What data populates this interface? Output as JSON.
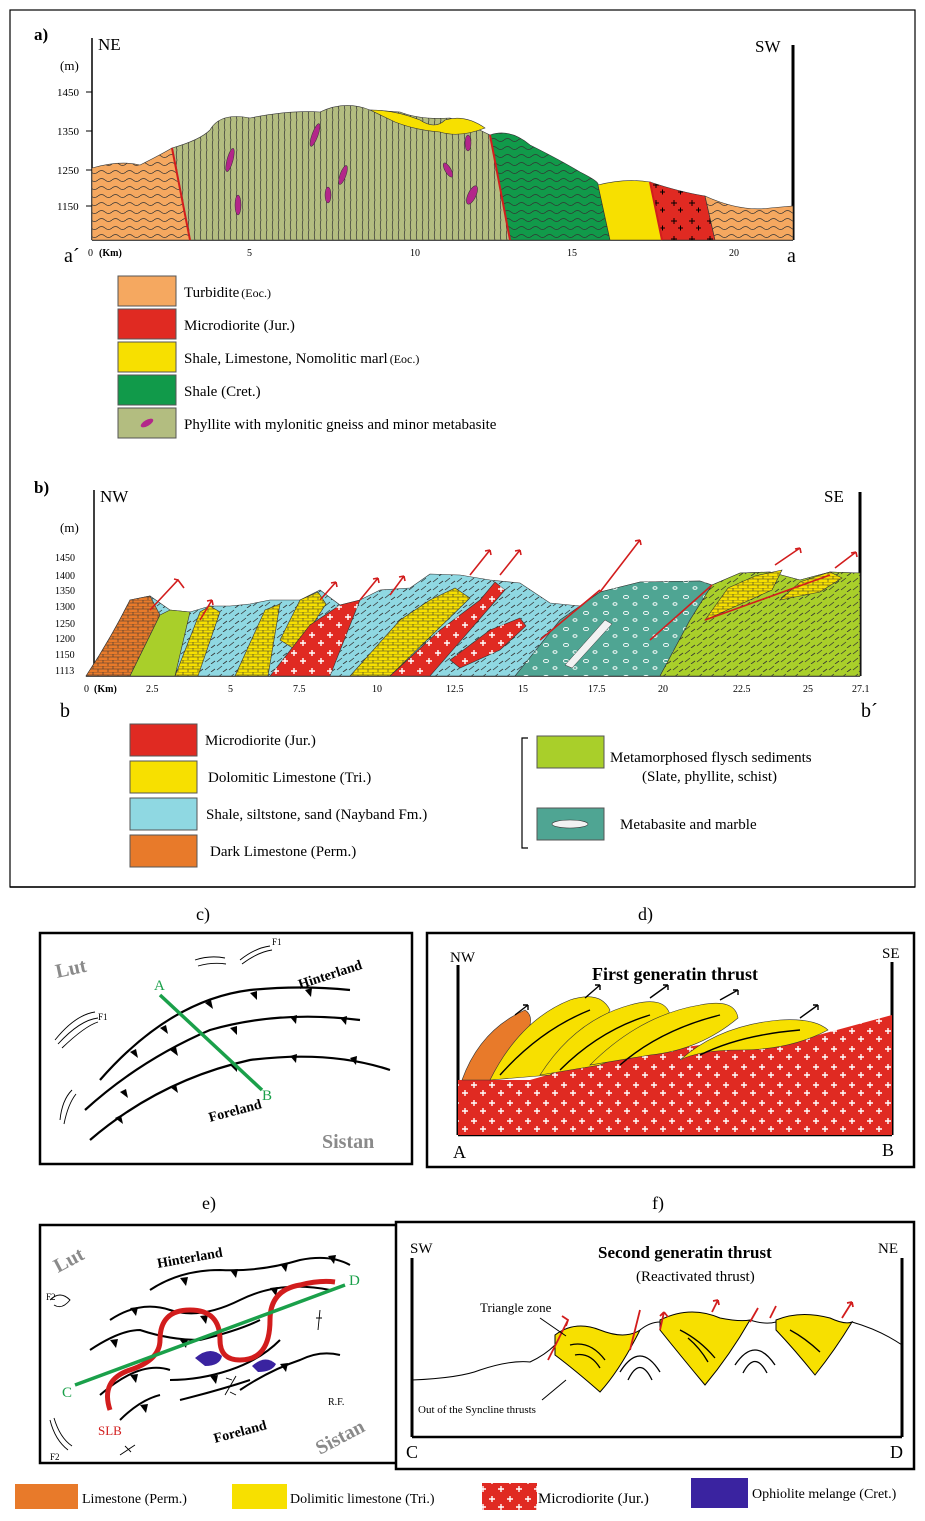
{
  "panel_a": {
    "tag": "a)",
    "dir_left": "NE",
    "dir_right": "SW",
    "unit": "(m)",
    "elev_ticks": [
      "1450",
      "1350",
      "1250",
      "1150"
    ],
    "km_unit": "(Km)",
    "km_ticks": [
      "0",
      "5",
      "10",
      "15",
      "20"
    ],
    "end_left": "a´",
    "end_right": "a",
    "legend": [
      {
        "label": "Turbidite",
        "suffix": "(Eoc.)",
        "color": "#f5a860"
      },
      {
        "label": "Microdiorite (Jur.)",
        "suffix": "",
        "color": "#e02a22"
      },
      {
        "label": "Shale, Limestone, Nomolitic marl",
        "suffix": "(Eoc.)",
        "color": "#f7e000"
      },
      {
        "label": "Shale (Cret.)",
        "suffix": "",
        "color": "#119a4a"
      },
      {
        "label": "Phyllite with mylonitic gneiss and minor metabasite",
        "suffix": "",
        "color": "#b3bd80"
      }
    ]
  },
  "panel_b": {
    "tag": "b)",
    "dir_left": "NW",
    "dir_right": "SE",
    "unit": "(m)",
    "elev_ticks": [
      "1450",
      "1400",
      "1350",
      "1300",
      "1250",
      "1200",
      "1150",
      "1113"
    ],
    "km_unit": "(Km)",
    "km_ticks": [
      "0",
      "2.5",
      "5",
      "7.5",
      "10",
      "12.5",
      "15",
      "17.5",
      "20",
      "22.5",
      "25",
      "27.1"
    ],
    "end_left": "b",
    "end_right": "b´",
    "legend_left": [
      {
        "label": "Microdiorite (Jur.)",
        "color": "#e02a22"
      },
      {
        "label": "Dolomitic Limestone (Tri.)",
        "color": "#f7e000"
      },
      {
        "label": "Shale, siltstone, sand (Nayband Fm.)",
        "color": "#8fd8e2"
      },
      {
        "label": "Dark Limestone (Perm.)",
        "color": "#e87a2a"
      }
    ],
    "legend_right": [
      {
        "label_1": "Metamorphosed flysch sediments",
        "label_2": "(Slate, phyllite, schist)",
        "color": "#a9cf2a"
      },
      {
        "label_1": "Metabasite and marble",
        "label_2": "",
        "color": "#4fa593"
      }
    ]
  },
  "panel_c": {
    "tag": "c)",
    "lut": "Lut",
    "hinterland": "Hinterland",
    "foreland": "Foreland",
    "sistan": "Sistan",
    "f1": "F1",
    "pt_a": "A",
    "pt_b": "B"
  },
  "panel_d": {
    "tag": "d)",
    "dir_left": "NW",
    "dir_right": "SE",
    "title": "First generatin thrust",
    "end_left": "A",
    "end_right": "B"
  },
  "panel_e": {
    "tag": "e)",
    "lut": "Lut",
    "hinterland": "Hinterland",
    "foreland": "Foreland",
    "sistan": "Sistan",
    "f2": "F2",
    "pt_c": "C",
    "pt_d": "D",
    "slb": "SLB",
    "rf": "R.F."
  },
  "panel_f": {
    "tag": "f)",
    "dir_left": "SW",
    "dir_right": "NE",
    "title": "Second generatin thrust",
    "subtitle": "(Reactivated thrust)",
    "triangle_zone": "Triangle zone",
    "syncline": "Out of the Syncline thrusts",
    "end_left": "C",
    "end_right": "D"
  },
  "bottom_legend": [
    {
      "label": "Limestone (Perm.)",
      "color": "#e87a2a"
    },
    {
      "label": "Dolimitic limestone (Tri.)",
      "color": "#f7e000"
    },
    {
      "label": "Microdiorite (Jur.)",
      "color": "#e02a22"
    },
    {
      "label": "Ophiolite melange (Cret.)",
      "color": "#3a23a0"
    }
  ]
}
